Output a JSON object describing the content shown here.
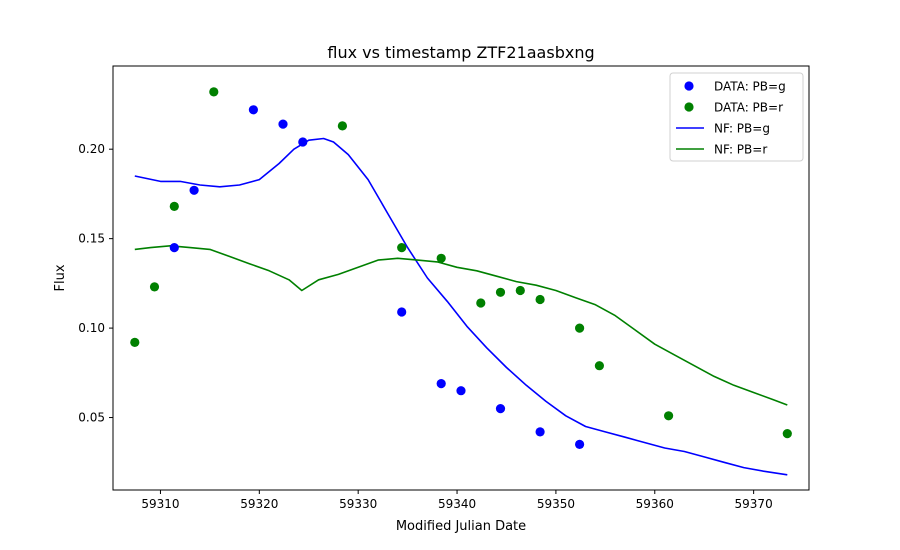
{
  "chart_data": {
    "type": "scatter",
    "title": "flux vs timestamp ZTF21aasbxng",
    "xlabel": "Modified Julian Date",
    "ylabel": "Flux",
    "xlim": [
      59305.2,
      59375.6
    ],
    "ylim": [
      0.0095,
      0.2465
    ],
    "xticks": [
      59310,
      59320,
      59330,
      59340,
      59350,
      59360,
      59370
    ],
    "xtick_labels": [
      "59310",
      "59320",
      "59330",
      "59340",
      "59350",
      "59360",
      "59370"
    ],
    "yticks": [
      0.05,
      0.1,
      0.15,
      0.2
    ],
    "ytick_labels": [
      "0.05",
      "0.10",
      "0.15",
      "0.20"
    ],
    "grid": false,
    "legend_position": "top-right",
    "scatter_series": [
      {
        "name": "DATA: PB=g",
        "color": "#0000ff",
        "x": [
          59311.4,
          59313.4,
          59319.4,
          59322.4,
          59324.4,
          59334.4,
          59338.4,
          59340.4,
          59344.4,
          59348.4,
          59352.4
        ],
        "y": [
          0.145,
          0.177,
          0.222,
          0.214,
          0.204,
          0.109,
          0.069,
          0.065,
          0.055,
          0.042,
          0.035
        ]
      },
      {
        "name": "DATA: PB=r",
        "color": "#008000",
        "x": [
          59307.4,
          59309.4,
          59311.4,
          59315.4,
          59328.4,
          59334.4,
          59338.4,
          59342.4,
          59344.4,
          59346.4,
          59348.4,
          59352.4,
          59354.4,
          59361.4,
          59373.4
        ],
        "y": [
          0.092,
          0.123,
          0.168,
          0.232,
          0.213,
          0.145,
          0.139,
          0.114,
          0.12,
          0.121,
          0.116,
          0.1,
          0.079,
          0.051,
          0.041
        ]
      }
    ],
    "line_series": [
      {
        "name": "NF: PB=g",
        "color": "#0000ff",
        "x": [
          59307.4,
          59310,
          59312,
          59314,
          59316,
          59318,
          59320,
          59322,
          59323.5,
          59325,
          59326.5,
          59327.5,
          59329,
          59331,
          59333,
          59335,
          59337,
          59339,
          59341,
          59343,
          59345,
          59347,
          59349,
          59351,
          59353,
          59355,
          59357,
          59359,
          59361,
          59363,
          59365,
          59367,
          59369,
          59371,
          59373.4
        ],
        "y": [
          0.185,
          0.182,
          0.182,
          0.18,
          0.179,
          0.18,
          0.183,
          0.192,
          0.2,
          0.205,
          0.206,
          0.204,
          0.197,
          0.183,
          0.164,
          0.145,
          0.128,
          0.115,
          0.101,
          0.089,
          0.078,
          0.068,
          0.059,
          0.051,
          0.045,
          0.042,
          0.039,
          0.036,
          0.033,
          0.031,
          0.028,
          0.025,
          0.022,
          0.02,
          0.018
        ]
      },
      {
        "name": "NF: PB=r",
        "color": "#008000",
        "x": [
          59307.4,
          59309,
          59311,
          59313,
          59315,
          59317,
          59319,
          59321,
          59323,
          59324.3,
          59326,
          59328,
          59330,
          59332,
          59334,
          59336,
          59338,
          59340,
          59342,
          59344,
          59346,
          59348,
          59350,
          59352,
          59354,
          59356,
          59358,
          59360,
          59362,
          59364,
          59366,
          59368,
          59370,
          59372,
          59373.4
        ],
        "y": [
          0.144,
          0.145,
          0.146,
          0.145,
          0.144,
          0.14,
          0.136,
          0.132,
          0.127,
          0.121,
          0.127,
          0.13,
          0.134,
          0.138,
          0.139,
          0.138,
          0.137,
          0.134,
          0.132,
          0.129,
          0.126,
          0.124,
          0.121,
          0.117,
          0.113,
          0.107,
          0.099,
          0.091,
          0.085,
          0.079,
          0.073,
          0.068,
          0.064,
          0.06,
          0.057
        ]
      }
    ],
    "legend_entries": [
      "DATA: PB=g",
      "DATA: PB=r",
      "NF: PB=g",
      "NF: PB=r"
    ]
  }
}
